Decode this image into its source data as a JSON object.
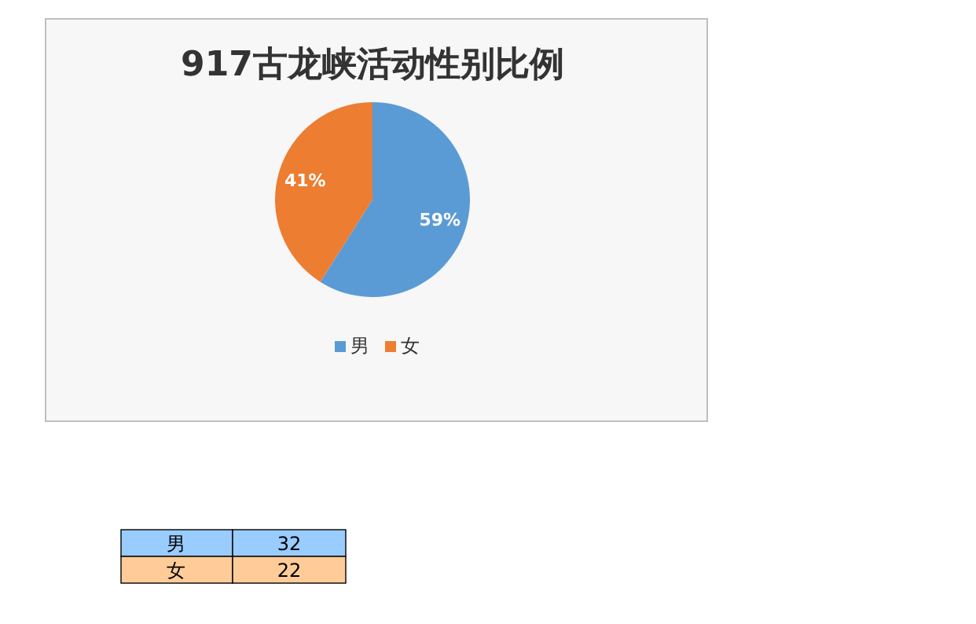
{
  "chart_data": [
    {
      "type": "pie",
      "title": "917古龙峡活动性别比例",
      "categories": [
        "男",
        "女"
      ],
      "values": [
        59,
        41
      ],
      "value_labels": [
        "59%",
        "41%"
      ],
      "colors": [
        "#5b9bd5",
        "#ed7d31"
      ],
      "legend": "bottom"
    },
    {
      "type": "other",
      "categories": [
        "男",
        "女"
      ],
      "values": [
        32,
        22
      ],
      "data_labels": true,
      "colors": [
        "#99ccff",
        "#ffcc99"
      ]
    }
  ]
}
